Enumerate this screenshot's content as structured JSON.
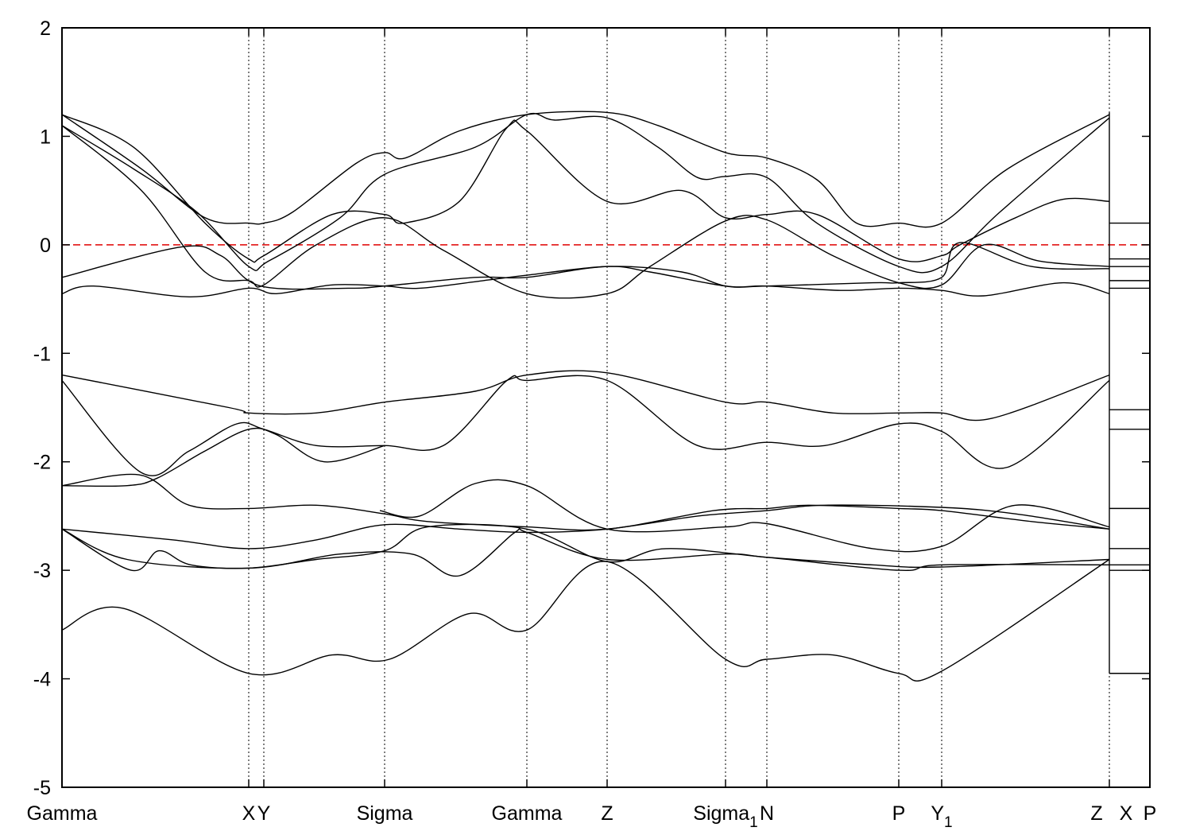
{
  "chart_data": {
    "type": "line",
    "title": "",
    "xlabel": "",
    "ylabel": "",
    "ylim": [
      -5,
      2
    ],
    "xlim": [
      0,
      13.69
    ],
    "yticks": [
      "2",
      "1",
      "0",
      "-1",
      "-2",
      "-3",
      "-4",
      "-5"
    ],
    "ytick_values": [
      2,
      1,
      0,
      -1,
      -2,
      -3,
      -4,
      -5
    ],
    "fermi_level": 0,
    "fermi_color": "#e00000",
    "band_color": "#000000",
    "kpoints": [
      {
        "label": "Gamma",
        "sub": "",
        "k": 0
      },
      {
        "label": "X",
        "sub": "",
        "k": 2.35
      },
      {
        "label": "Y",
        "sub": "",
        "k": 2.54
      },
      {
        "label": "Sigma",
        "sub": "",
        "k": 4.06
      },
      {
        "label": "Gamma",
        "sub": "",
        "k": 5.85
      },
      {
        "label": "Z",
        "sub": "",
        "k": 6.86
      },
      {
        "label": "Sigma",
        "sub": "1",
        "k": 8.35
      },
      {
        "label": "N",
        "sub": "",
        "k": 8.87
      },
      {
        "label": "P",
        "sub": "",
        "k": 10.53
      },
      {
        "label": "Y",
        "sub": "1",
        "k": 11.07
      },
      {
        "label": "Z",
        "sub": "",
        "k": 13.02
      },
      {
        "label": "X",
        "sub": "",
        "k": 13.39
      },
      {
        "label": "P",
        "sub": "",
        "k": 13.69
      }
    ],
    "gridlines_k": [
      2.35,
      2.54,
      4.06,
      5.85,
      6.86,
      8.35,
      8.87,
      10.53,
      11.07,
      13.18
    ],
    "discontinuity_k": 13.18,
    "discontinuity_range": [
      -3.95,
      1.22
    ],
    "series": [
      {
        "name": "band-1",
        "points": [
          [
            0,
            1.2
          ],
          [
            1.0,
            0.7
          ],
          [
            1.8,
            0.25
          ],
          [
            2.35,
            0.2
          ],
          [
            2.54,
            0.2
          ],
          [
            2.9,
            0.3
          ],
          [
            3.7,
            0.75
          ],
          [
            4.06,
            0.85
          ],
          [
            4.32,
            0.8
          ],
          [
            5.0,
            1.05
          ],
          [
            5.85,
            1.2
          ],
          [
            6.86,
            1.22
          ],
          [
            7.5,
            1.1
          ],
          [
            8.35,
            0.85
          ],
          [
            8.87,
            0.8
          ],
          [
            9.5,
            0.6
          ],
          [
            10.0,
            0.2
          ],
          [
            10.53,
            0.2
          ],
          [
            11.07,
            0.2
          ],
          [
            11.9,
            0.7
          ],
          [
            13.18,
            1.2
          ]
        ]
      },
      {
        "name": "band-2",
        "points": [
          [
            0,
            1.2
          ],
          [
            0.9,
            0.9
          ],
          [
            1.8,
            0.2
          ],
          [
            2.35,
            -0.13
          ],
          [
            2.54,
            -0.1
          ],
          [
            3.4,
            0.28
          ],
          [
            4.06,
            0.28
          ],
          [
            4.3,
            0.2
          ],
          [
            5.0,
            0.4
          ],
          [
            5.6,
            1.08
          ],
          [
            5.85,
            1.05
          ],
          [
            6.86,
            0.4
          ],
          [
            7.8,
            0.5
          ],
          [
            8.35,
            0.25
          ],
          [
            8.87,
            0.28
          ],
          [
            9.5,
            0.28
          ],
          [
            10.53,
            -0.13
          ],
          [
            11.07,
            -0.1
          ],
          [
            11.3,
            0.0
          ],
          [
            12.0,
            0.25
          ],
          [
            12.6,
            0.42
          ],
          [
            13.18,
            0.4
          ]
        ]
      },
      {
        "name": "band-3",
        "points": [
          [
            0,
            1.1
          ],
          [
            0.9,
            0.7
          ],
          [
            1.7,
            0.3
          ],
          [
            2.35,
            -0.2
          ],
          [
            2.6,
            -0.15
          ],
          [
            3.5,
            0.25
          ],
          [
            4.06,
            0.65
          ],
          [
            5.2,
            0.9
          ],
          [
            5.85,
            1.2
          ],
          [
            6.2,
            1.15
          ],
          [
            6.86,
            1.17
          ],
          [
            7.5,
            0.9
          ],
          [
            8.0,
            0.62
          ],
          [
            8.35,
            0.63
          ],
          [
            8.87,
            0.62
          ],
          [
            9.5,
            0.2
          ],
          [
            10.53,
            -0.2
          ],
          [
            11.07,
            -0.2
          ],
          [
            11.8,
            0.3
          ],
          [
            13.18,
            1.17
          ]
        ]
      },
      {
        "name": "band-4",
        "points": [
          [
            0,
            1.1
          ],
          [
            1.0,
            0.5
          ],
          [
            1.8,
            -0.25
          ],
          [
            2.35,
            -0.33
          ],
          [
            2.54,
            -0.37
          ],
          [
            3.2,
            0.0
          ],
          [
            4.06,
            0.25
          ],
          [
            4.8,
            -0.05
          ],
          [
            5.85,
            -0.45
          ],
          [
            6.86,
            -0.45
          ],
          [
            7.4,
            -0.2
          ],
          [
            8.35,
            0.22
          ],
          [
            8.87,
            0.23
          ],
          [
            9.7,
            -0.1
          ],
          [
            10.53,
            -0.35
          ],
          [
            11.07,
            -0.37
          ],
          [
            11.6,
            0.0
          ],
          [
            12.3,
            -0.15
          ],
          [
            13.18,
            -0.2
          ]
        ]
      },
      {
        "name": "band-5",
        "points": [
          [
            0,
            -0.3
          ],
          [
            1.5,
            -0.02
          ],
          [
            2.0,
            -0.1
          ],
          [
            2.5,
            -0.38
          ],
          [
            3.6,
            -0.4
          ],
          [
            4.06,
            -0.38
          ],
          [
            5.2,
            -0.3
          ],
          [
            5.85,
            -0.3
          ],
          [
            6.86,
            -0.2
          ],
          [
            7.8,
            -0.25
          ],
          [
            8.35,
            -0.38
          ],
          [
            8.87,
            -0.38
          ],
          [
            10.2,
            -0.35
          ],
          [
            10.53,
            -0.35
          ],
          [
            11.07,
            -0.3
          ],
          [
            11.3,
            0.02
          ],
          [
            12.2,
            -0.2
          ],
          [
            13.18,
            -0.22
          ]
        ]
      },
      {
        "name": "band-6",
        "points": [
          [
            0,
            -0.45
          ],
          [
            0.4,
            -0.38
          ],
          [
            1.6,
            -0.48
          ],
          [
            2.35,
            -0.4
          ],
          [
            2.7,
            -0.45
          ],
          [
            3.4,
            -0.37
          ],
          [
            4.06,
            -0.38
          ],
          [
            4.5,
            -0.4
          ],
          [
            5.3,
            -0.33
          ],
          [
            5.85,
            -0.28
          ],
          [
            6.86,
            -0.2
          ],
          [
            7.4,
            -0.25
          ],
          [
            8.35,
            -0.38
          ],
          [
            8.87,
            -0.38
          ],
          [
            9.8,
            -0.42
          ],
          [
            10.53,
            -0.4
          ],
          [
            11.07,
            -0.42
          ],
          [
            11.6,
            -0.47
          ],
          [
            12.6,
            -0.35
          ],
          [
            13.18,
            -0.45
          ]
        ]
      },
      {
        "name": "band-7",
        "points": [
          [
            0,
            -1.2
          ],
          [
            2.1,
            -1.5
          ],
          [
            2.35,
            -1.55
          ],
          [
            3.2,
            -1.55
          ],
          [
            4.06,
            -1.45
          ],
          [
            5.2,
            -1.35
          ],
          [
            5.85,
            -1.2
          ],
          [
            6.86,
            -1.18
          ],
          [
            8.35,
            -1.45
          ],
          [
            8.87,
            -1.45
          ],
          [
            9.7,
            -1.55
          ],
          [
            10.53,
            -1.55
          ],
          [
            11.07,
            -1.55
          ],
          [
            11.7,
            -1.6
          ],
          [
            13.18,
            -1.2
          ]
        ]
      },
      {
        "name": "band-8",
        "points": [
          [
            0,
            -1.25
          ],
          [
            1.0,
            -2.1
          ],
          [
            1.6,
            -1.9
          ],
          [
            2.2,
            -1.65
          ],
          [
            2.54,
            -1.7
          ],
          [
            3.2,
            -1.85
          ],
          [
            4.06,
            -1.85
          ],
          [
            4.8,
            -1.85
          ],
          [
            5.6,
            -1.25
          ],
          [
            5.85,
            -1.25
          ],
          [
            6.86,
            -1.25
          ],
          [
            8.0,
            -1.85
          ],
          [
            8.87,
            -1.82
          ],
          [
            9.6,
            -1.85
          ],
          [
            10.53,
            -1.65
          ],
          [
            11.07,
            -1.72
          ],
          [
            11.9,
            -2.05
          ],
          [
            13.18,
            -1.25
          ]
        ]
      },
      {
        "name": "band-9",
        "points": [
          [
            0,
            -2.22
          ],
          [
            0.97,
            -2.12
          ],
          [
            1.6,
            -2.4
          ],
          [
            2.35,
            -2.43
          ],
          [
            3.2,
            -2.4
          ],
          [
            4.06,
            -2.48
          ],
          [
            4.6,
            -2.55
          ],
          [
            5.85,
            -2.6
          ],
          [
            6.86,
            -2.62
          ],
          [
            8.2,
            -2.45
          ],
          [
            8.87,
            -2.43
          ],
          [
            9.4,
            -2.4
          ],
          [
            10.53,
            -2.43
          ],
          [
            11.07,
            -2.45
          ],
          [
            12.2,
            -2.55
          ],
          [
            13.18,
            -2.62
          ]
        ]
      },
      {
        "name": "band-10",
        "points": [
          [
            0,
            -2.22
          ],
          [
            0.82,
            -2.22
          ],
          [
            1.2,
            -2.15
          ],
          [
            1.8,
            -1.9
          ],
          [
            2.35,
            -1.7
          ],
          [
            2.7,
            -1.75
          ],
          [
            3.3,
            -2.0
          ],
          [
            4.06,
            -1.85
          ]
        ]
      },
      {
        "name": "band-11",
        "points": [
          [
            4.0,
            -2.45
          ],
          [
            4.5,
            -2.5
          ],
          [
            5.2,
            -2.2
          ],
          [
            5.85,
            -2.22
          ],
          [
            6.86,
            -2.62
          ],
          [
            8.35,
            -2.6
          ],
          [
            8.87,
            -2.57
          ],
          [
            10.2,
            -2.8
          ],
          [
            11.07,
            -2.78
          ],
          [
            12.0,
            -2.4
          ],
          [
            13.18,
            -2.6
          ]
        ]
      },
      {
        "name": "band-12",
        "points": [
          [
            0,
            -2.62
          ],
          [
            1.4,
            -2.72
          ],
          [
            2.35,
            -2.8
          ],
          [
            3.2,
            -2.72
          ],
          [
            4.06,
            -2.58
          ],
          [
            5.0,
            -2.62
          ],
          [
            5.85,
            -2.65
          ],
          [
            6.86,
            -2.62
          ],
          [
            8.0,
            -2.5
          ],
          [
            8.87,
            -2.45
          ],
          [
            9.6,
            -2.4
          ],
          [
            11.07,
            -2.42
          ],
          [
            12.0,
            -2.48
          ],
          [
            13.18,
            -2.62
          ]
        ]
      },
      {
        "name": "band-13",
        "points": [
          [
            0,
            -2.62
          ],
          [
            0.87,
            -3.0
          ],
          [
            1.22,
            -2.82
          ],
          [
            1.62,
            -2.95
          ],
          [
            2.35,
            -2.98
          ],
          [
            3.2,
            -2.9
          ],
          [
            4.06,
            -2.82
          ],
          [
            4.6,
            -2.6
          ],
          [
            5.85,
            -2.62
          ],
          [
            6.86,
            -2.92
          ],
          [
            7.6,
            -2.8
          ],
          [
            8.87,
            -2.88
          ],
          [
            10.53,
            -3.0
          ],
          [
            11.07,
            -2.95
          ],
          [
            13.18,
            -2.95
          ]
        ]
      },
      {
        "name": "band-14",
        "points": [
          [
            0,
            -2.62
          ],
          [
            0.82,
            -2.9
          ],
          [
            2.35,
            -2.98
          ],
          [
            3.5,
            -2.85
          ],
          [
            4.4,
            -2.85
          ],
          [
            5.0,
            -3.05
          ],
          [
            5.7,
            -2.65
          ],
          [
            5.85,
            -2.65
          ],
          [
            6.86,
            -2.9
          ],
          [
            8.35,
            -2.85
          ],
          [
            8.87,
            -2.88
          ],
          [
            10.2,
            -2.95
          ],
          [
            11.07,
            -2.97
          ],
          [
            13.18,
            -2.9
          ]
        ]
      },
      {
        "name": "band-15",
        "points": [
          [
            0,
            -3.55
          ],
          [
            0.77,
            -3.35
          ],
          [
            2.35,
            -3.95
          ],
          [
            3.4,
            -3.78
          ],
          [
            4.12,
            -3.82
          ],
          [
            5.12,
            -3.4
          ],
          [
            5.85,
            -3.55
          ],
          [
            6.86,
            -2.92
          ],
          [
            8.35,
            -3.82
          ],
          [
            8.87,
            -3.82
          ],
          [
            9.7,
            -3.78
          ],
          [
            10.53,
            -3.95
          ],
          [
            11.07,
            -3.93
          ],
          [
            13.18,
            -2.9
          ]
        ]
      }
    ],
    "xp_segment": {
      "k_range": [
        13.18,
        13.69
      ],
      "levels": [
        0.2,
        -0.13,
        -0.2,
        -0.33,
        -0.4,
        -1.52,
        -1.7,
        -2.43,
        -2.8,
        -2.95,
        -3.0,
        -3.95
      ]
    }
  }
}
